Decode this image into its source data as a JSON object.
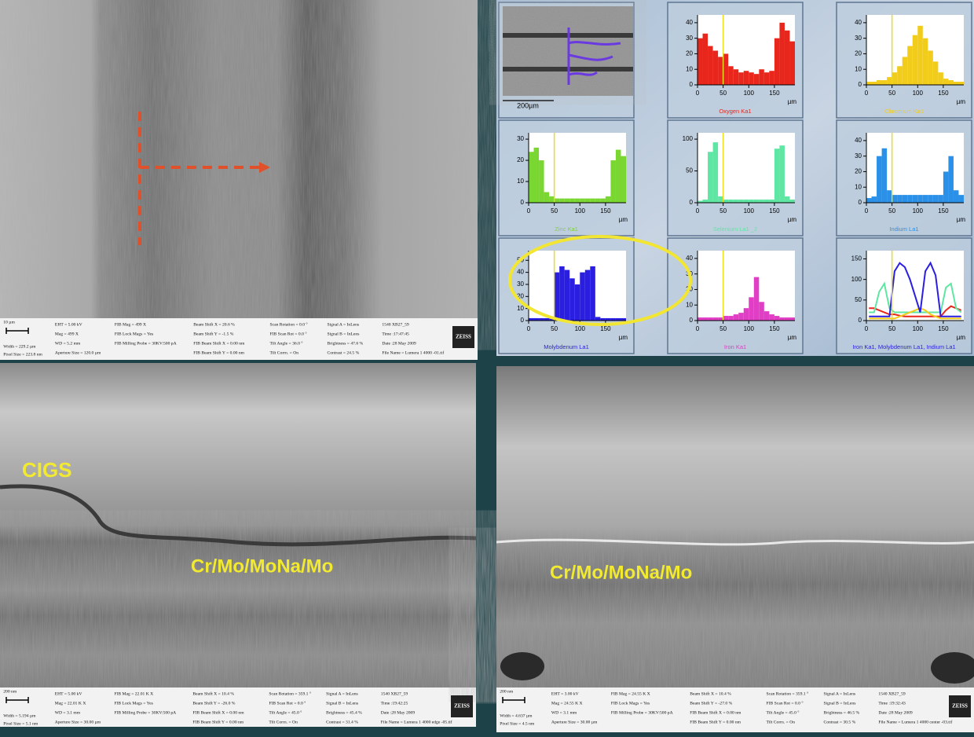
{
  "sem_top": {
    "info": [
      [
        "10 µm",
        "Width = 229.2 µm",
        "Pixel Size = 223.8 nm"
      ],
      [
        "EHT = 5.00 kV",
        "Mag = 499 X",
        "WD = 5.2 mm",
        "Aperture Size = 120.0 µm"
      ],
      [
        "FIB Mag = 499 X",
        "FIB Lock Mags = Yes",
        "FIB Milling Probe = 30KV:500 pA"
      ],
      [
        "Beam Shift X = 20.6 %",
        "Beam Shift Y = -1.5 %",
        "FIB Beam Shift X = 0.00 nm",
        "FIB Beam Shift Y = 0.00 nm"
      ],
      [
        "Scan Rotation = 0.0 °",
        "FIB Scan Rot = 0.0 °",
        "Tilt Angle = 36.0 °",
        "Tilt Corrn. = On"
      ],
      [
        "Signal A = InLens",
        "Signal B = InLens",
        "Brightness = 47.6 %",
        "Contrast = 24.5 %"
      ],
      [
        "1540 XB27_59",
        "Time :17:47:45",
        "Date :28 May 2009",
        "File Name = Lumera 1 4000 -01.tif"
      ]
    ],
    "logo": "ZEISS"
  },
  "sem_bottom_left": {
    "label_cigs": "CIGS",
    "label_layer": "Cr/Mo/MoNa/Mo",
    "info": [
      [
        "200 nm",
        "Width = 5.194 µm",
        "Pixel Size = 5.1 nm"
      ],
      [
        "EHT = 5.00 kV",
        "Mag = 22.01 K X",
        "WD = 3.1 mm",
        "Aperture Size = 30.00 µm"
      ],
      [
        "FIB Mag = 22.01 K X",
        "FIB Lock Mags = Yes",
        "FIB Milling Probe = 30KV:500 pA"
      ],
      [
        "Beam Shift X = 10.4 %",
        "Beam Shift Y = -26.0 %",
        "FIB Beam Shift X = 0.00 nm",
        "FIB Beam Shift Y = 0.00 nm"
      ],
      [
        "Scan Rotation = 359.1 °",
        "FIB Scan Rot = 0.0 °",
        "Tilt Angle = 45.0 °",
        "Tilt Corrn. = On"
      ],
      [
        "Signal A = InLens",
        "Signal B = InLens",
        "Brightness = 45.4 %",
        "Contrast = 31.4 %"
      ],
      [
        "1540 XB27_59",
        "Time :19:42:25",
        "Date :28 May 2009",
        "File Name = Lumera 1 4000 edge -05.tif"
      ]
    ],
    "logo": "ZEISS"
  },
  "sem_bottom_right": {
    "label_layer": "Cr/Mo/MoNa/Mo",
    "info": [
      [
        "200 nm",
        "Width = 4.637 µm",
        "Pixel Size = 4.5 nm"
      ],
      [
        "EHT = 3.00 kV",
        "Mag = 24.55 K X",
        "WD = 3.1 mm",
        "Aperture Size = 30.00 µm"
      ],
      [
        "FIB Mag = 24.55 K X",
        "FIB Lock Mags = Yes",
        "FIB Milling Probe = 30KV:500 pA"
      ],
      [
        "Beam Shift X = 10.4 %",
        "Beam Shift Y = -27.0 %",
        "FIB Beam Shift X = 0.00 nm",
        "FIB Beam Shift Y = 0.00 nm"
      ],
      [
        "Scan Rotation = 359.1 °",
        "FIB Scan Rot = 0.0 °",
        "Tilt Angle = 45.0 °",
        "Tilt Corrn. = On"
      ],
      [
        "Signal A = InLens",
        "Signal B = InLens",
        "Brightness = 46.5 %",
        "Contrast = 30.5 %"
      ],
      [
        "1540 XB27_59",
        "Time :19:32:43",
        "Date :28 May 2009",
        "File Name = Lumera 1 4000 center -03.tif"
      ]
    ],
    "logo": "ZEISS"
  },
  "eds": {
    "thumbnail_scale": "200µm",
    "charts": [
      {
        "type": "bar",
        "title": "Oxygen Ka1",
        "x_unit": "µm",
        "cursor_x": 50,
        "xlim": [
          0,
          190
        ],
        "xticks": [
          0,
          50,
          100,
          150
        ],
        "ylim": [
          0,
          45
        ],
        "yticks": [
          0,
          10,
          20,
          30,
          40
        ],
        "x": [
          5,
          15,
          25,
          35,
          45,
          55,
          65,
          75,
          85,
          95,
          105,
          115,
          125,
          135,
          145,
          155,
          165,
          175,
          185
        ],
        "series": [
          {
            "color": "#e8261c",
            "values": [
              30,
              33,
              25,
              22,
              18,
              20,
              12,
              10,
              8,
              9,
              8,
              7,
              10,
              8,
              9,
              30,
              40,
              35,
              28
            ]
          }
        ]
      },
      {
        "type": "bar",
        "title": "Chromium Ka1",
        "x_unit": "µm",
        "cursor_x": 50,
        "xlim": [
          0,
          190
        ],
        "xticks": [
          0,
          50,
          100,
          150
        ],
        "ylim": [
          0,
          45
        ],
        "yticks": [
          0,
          10,
          20,
          30,
          40
        ],
        "x": [
          5,
          15,
          25,
          35,
          45,
          55,
          65,
          75,
          85,
          95,
          105,
          115,
          125,
          135,
          145,
          155,
          165,
          175,
          185
        ],
        "series": [
          {
            "color": "#f2cc1a",
            "values": [
              2,
              2,
              3,
              3,
              5,
              8,
              12,
              18,
              25,
              32,
              38,
              30,
              22,
              15,
              8,
              4,
              3,
              2,
              2
            ]
          }
        ]
      },
      {
        "type": "bar",
        "title": "Zinc Ka1",
        "x_unit": "µm",
        "cursor_x": 50,
        "xlim": [
          0,
          190
        ],
        "xticks": [
          0,
          50,
          100,
          150
        ],
        "ylim": [
          0,
          33
        ],
        "yticks": [
          0,
          10,
          20,
          30
        ],
        "x": [
          5,
          15,
          25,
          35,
          45,
          55,
          65,
          75,
          85,
          95,
          105,
          115,
          125,
          135,
          145,
          155,
          165,
          175,
          185
        ],
        "series": [
          {
            "color": "#7ad630",
            "values": [
              24,
              26,
              20,
              5,
              3,
              2,
              2,
              2,
              2,
              2,
              2,
              2,
              2,
              2,
              2,
              3,
              20,
              25,
              22
            ]
          }
        ]
      },
      {
        "type": "bar",
        "title": "Selenium La1 _2",
        "x_unit": "µm",
        "cursor_x": 50,
        "xlim": [
          0,
          190
        ],
        "xticks": [
          0,
          50,
          100,
          150
        ],
        "ylim": [
          0,
          110
        ],
        "yticks": [
          0,
          50,
          100
        ],
        "x": [
          5,
          15,
          25,
          35,
          45,
          55,
          65,
          75,
          85,
          95,
          105,
          115,
          125,
          135,
          145,
          155,
          165,
          175,
          185
        ],
        "series": [
          {
            "color": "#5ee6a2",
            "values": [
              3,
              5,
              80,
              95,
              10,
              5,
              5,
              5,
              5,
              5,
              5,
              5,
              5,
              5,
              5,
              85,
              90,
              10,
              5
            ]
          }
        ]
      },
      {
        "type": "bar",
        "title": "Indium La1",
        "x_unit": "µm",
        "cursor_x": 50,
        "xlim": [
          0,
          190
        ],
        "xticks": [
          0,
          50,
          100,
          150
        ],
        "ylim": [
          0,
          45
        ],
        "yticks": [
          0,
          10,
          20,
          30,
          40
        ],
        "x": [
          5,
          15,
          25,
          35,
          45,
          55,
          65,
          75,
          85,
          95,
          105,
          115,
          125,
          135,
          145,
          155,
          165,
          175,
          185
        ],
        "series": [
          {
            "color": "#2a90e8",
            "values": [
              3,
              4,
              30,
              35,
              8,
              5,
              5,
              5,
              5,
              5,
              5,
              5,
              5,
              5,
              5,
              20,
              30,
              8,
              5
            ]
          }
        ]
      },
      {
        "type": "bar",
        "title": "Molybdenum La1",
        "x_unit": "µm",
        "cursor_x": 50,
        "xlim": [
          0,
          190
        ],
        "xticks": [
          0,
          50,
          100,
          150
        ],
        "ylim": [
          0,
          58
        ],
        "yticks": [
          0,
          10,
          20,
          30,
          40,
          50
        ],
        "x": [
          5,
          15,
          25,
          35,
          45,
          55,
          65,
          75,
          85,
          95,
          105,
          115,
          125,
          135,
          145,
          155,
          165,
          175,
          185
        ],
        "series": [
          {
            "color": "#2a1ee0",
            "values": [
              2,
              2,
              2,
              2,
              3,
              40,
              45,
              42,
              35,
              30,
              40,
              42,
              45,
              3,
              2,
              2,
              2,
              2,
              2
            ]
          }
        ]
      },
      {
        "type": "bar",
        "title": "Iron Ka1",
        "x_unit": "µm",
        "cursor_x": 50,
        "xlim": [
          0,
          190
        ],
        "xticks": [
          0,
          50,
          100,
          150
        ],
        "ylim": [
          0,
          45
        ],
        "yticks": [
          0,
          10,
          20,
          30,
          40
        ],
        "x": [
          5,
          15,
          25,
          35,
          45,
          55,
          65,
          75,
          85,
          95,
          105,
          115,
          125,
          135,
          145,
          155,
          165,
          175,
          185
        ],
        "series": [
          {
            "color": "#e03ec4",
            "values": [
              2,
              2,
              2,
              2,
              2,
              3,
              3,
              4,
              5,
              8,
              15,
              28,
              12,
              6,
              4,
              3,
              2,
              2,
              2
            ]
          }
        ]
      },
      {
        "type": "line",
        "title": "Iron Ka1, Molybdenum La1, Indium La1",
        "x_unit": "µm",
        "cursor_x": 50,
        "xlim": [
          0,
          190
        ],
        "xticks": [
          0,
          50,
          100,
          150
        ],
        "ylim": [
          0,
          170
        ],
        "yticks": [
          0,
          50,
          100,
          150
        ],
        "x": [
          5,
          15,
          25,
          35,
          45,
          55,
          65,
          75,
          85,
          95,
          105,
          115,
          125,
          135,
          145,
          155,
          165,
          175,
          185
        ],
        "series": [
          {
            "color": "#e8261c",
            "values": [
              30,
              30,
              25,
              20,
              15,
              15,
              12,
              10,
              10,
              10,
              10,
              10,
              10,
              10,
              10,
              25,
              35,
              30,
              25
            ]
          },
          {
            "color": "#5ee6a2",
            "values": [
              20,
              20,
              70,
              90,
              30,
              20,
              20,
              20,
              20,
              20,
              20,
              20,
              20,
              20,
              20,
              80,
              90,
              30,
              20
            ]
          },
          {
            "color": "#f2cc1a",
            "values": [
              5,
              5,
              5,
              5,
              5,
              5,
              10,
              15,
              20,
              25,
              30,
              25,
              15,
              10,
              5,
              5,
              5,
              5,
              5
            ]
          },
          {
            "color": "#2a1ee0",
            "values": [
              10,
              10,
              10,
              10,
              10,
              120,
              140,
              130,
              100,
              60,
              20,
              120,
              140,
              110,
              10,
              10,
              10,
              10,
              10
            ]
          }
        ]
      }
    ]
  }
}
